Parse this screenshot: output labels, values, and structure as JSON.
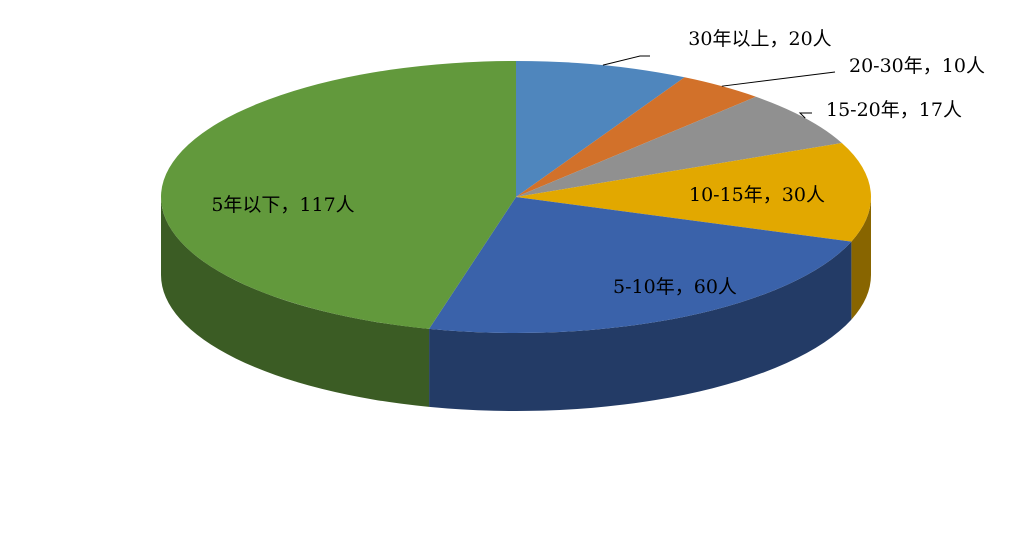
{
  "chart_data": {
    "type": "pie3d",
    "categories": [
      "30年以上",
      "20-30年",
      "15-20年",
      "10-15年",
      "5-10年",
      "5年以下"
    ],
    "values": [
      20,
      10,
      17,
      30,
      60,
      117
    ],
    "value_labels": [
      "20人",
      "10人",
      "17人",
      "30人",
      "60人",
      "117人"
    ],
    "label_separator": "，",
    "colors": [
      "#4f86bd",
      "#d2712a",
      "#909090",
      "#e2a800",
      "#3a62aa",
      "#62993c"
    ]
  }
}
